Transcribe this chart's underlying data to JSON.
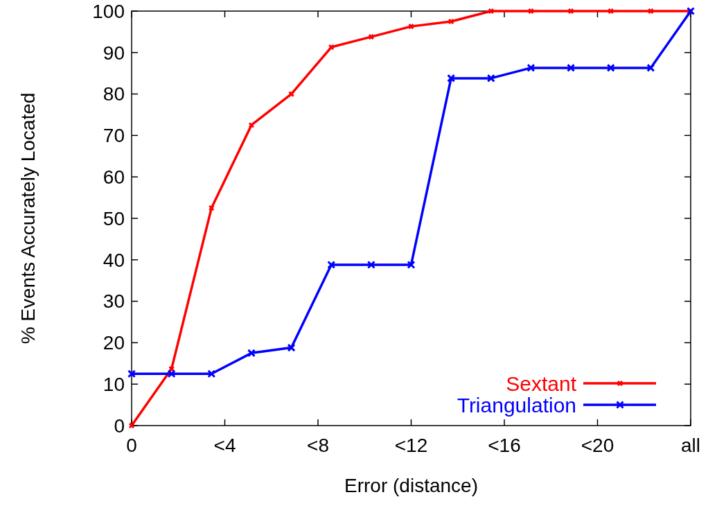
{
  "chart_data": {
    "type": "line",
    "xlabel": "Error (distance)",
    "ylabel": "% Events Accurately Located",
    "categories": [
      null,
      null,
      null,
      null,
      null,
      null,
      null,
      null,
      null,
      null,
      null,
      null,
      null,
      null,
      null
    ],
    "annotations": [
      "0",
      "<4",
      "<8",
      "<12",
      "<16",
      "<20",
      "all"
    ],
    "series": [
      {
        "name": "Sextant",
        "color": "#ff0000",
        "values": [
          0,
          13.7,
          52.5,
          72.5,
          80,
          91.3,
          93.8,
          96.3,
          97.5,
          100,
          100,
          100,
          100,
          100,
          100
        ]
      },
      {
        "name": "Triangulation",
        "color": "#0000ff",
        "values": [
          12.5,
          12.5,
          12.5,
          17.5,
          18.8,
          38.8,
          38.8,
          38.8,
          83.8,
          83.8,
          86.3,
          86.3,
          86.3,
          86.3,
          100
        ]
      }
    ],
    "ylim": [
      0,
      100
    ],
    "yticks": [
      0,
      10,
      20,
      30,
      40,
      50,
      60,
      70,
      80,
      90,
      100
    ],
    "grid": false,
    "legend": "bottom right",
    "marker": "cross",
    "line_style": "solid"
  }
}
